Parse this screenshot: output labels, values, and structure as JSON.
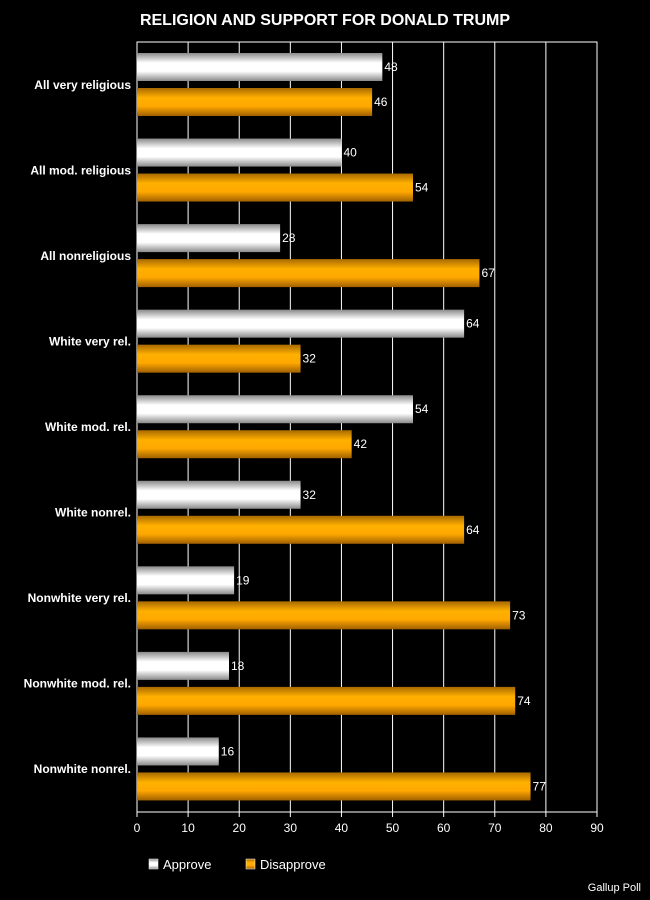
{
  "chart_data": {
    "type": "bar",
    "orientation": "horizontal",
    "title": "RELIGION AND SUPPORT FOR DONALD TRUMP",
    "source": "Gallup Poll",
    "categories": [
      "All very religious",
      "All mod. religious",
      "All nonreligious",
      "White very rel.",
      "White mod. rel.",
      "White nonrel.",
      "Nonwhite very rel.",
      "Nonwhite mod. rel.",
      "Nonwhite nonrel."
    ],
    "series": [
      {
        "name": "Approve",
        "values": [
          48,
          40,
          28,
          64,
          54,
          32,
          19,
          18,
          16
        ],
        "color": "#ffffff"
      },
      {
        "name": "Disapprove",
        "values": [
          46,
          54,
          67,
          32,
          42,
          64,
          73,
          74,
          77
        ],
        "color": "#f0a000"
      }
    ],
    "xlim": [
      0,
      90
    ],
    "xticks": [
      0,
      10,
      20,
      30,
      40,
      50,
      60,
      70,
      80,
      90
    ],
    "grid": "vertical",
    "legend": "bottom-left",
    "colors": {
      "background": "#000000",
      "plot_border": "#ffffff",
      "text": "#ffffff"
    }
  }
}
